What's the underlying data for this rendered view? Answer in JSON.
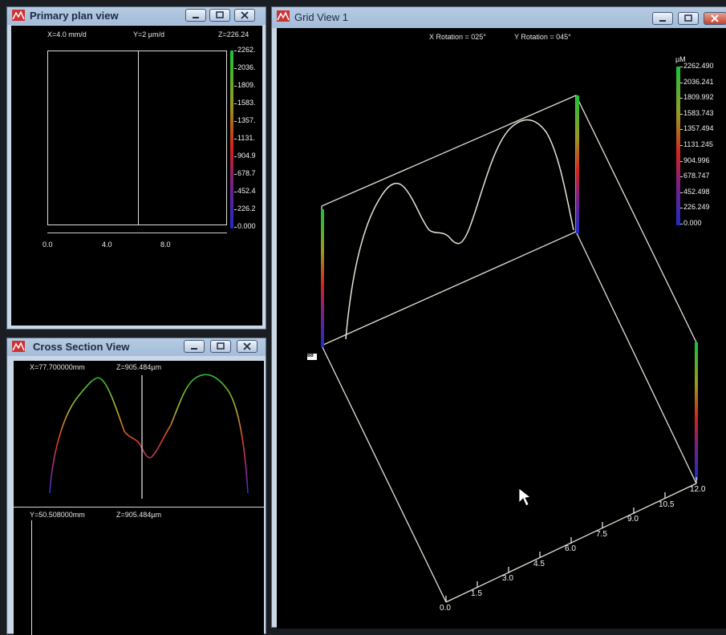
{
  "primary_plan": {
    "title": "Primary plan view",
    "x_readout": "X=4.0 mm/d",
    "y_readout": "Y=2 µm/d",
    "z_readout": "Z=226.24",
    "scale": [
      "2262.",
      "2036.",
      "1809.",
      "1583.",
      "1357.",
      "1131.",
      "904.9",
      "678.7",
      "452.4",
      "226.2",
      "0.000"
    ],
    "x_ticks": [
      "0.0",
      "4.0",
      "8.0"
    ]
  },
  "cross_section": {
    "title": "Cross Section View",
    "upper_readout_x": "X=77.700000mm",
    "upper_readout_z": "Z=905.484µm",
    "lower_readout_y": "Y=50.508000mm",
    "lower_readout_z": "Z=905.484µm"
  },
  "grid_view": {
    "title": "Grid View 1",
    "x_rotation": "X Rotation = 025°",
    "y_rotation": "Y Rotation = 045°",
    "unit": "µM",
    "scale": [
      "2262.490",
      "2036.241",
      "1809.992",
      "1583.743",
      "1357.494",
      "1131.245",
      "904.996",
      "678.747",
      "452.498",
      "226.249",
      "0.000"
    ],
    "axis_ticks": [
      "0.0",
      "1.5",
      "3.0",
      "4.5",
      "6.0",
      "7.5",
      "9.0",
      "10.5",
      "12.0"
    ],
    "corner_marker": "88"
  },
  "colors": {
    "background": "#000000",
    "window_frame": "#c9d7e6",
    "title_text": "#1b2b44",
    "profile_line": "#e8e4d8"
  },
  "icons": [
    "app-icon",
    "minimize-icon",
    "maximize-icon",
    "close-icon",
    "mouse-pointer-icon"
  ]
}
